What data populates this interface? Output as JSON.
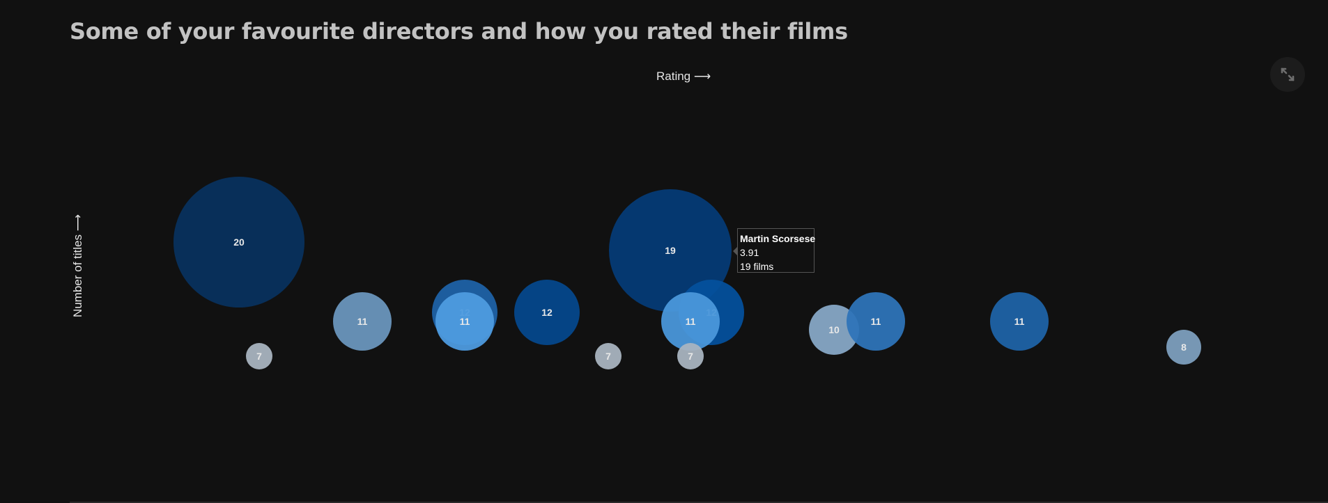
{
  "header": {
    "title": "Some of your favourite directors and how you rated their films"
  },
  "axes": {
    "x_label": "Rating ⟶",
    "y_label": "Number of titles ⟶"
  },
  "toolbar": {
    "expand_icon": "expand-arrows-icon"
  },
  "tooltip": {
    "name": "Martin Scorsese",
    "rating": "3.91",
    "count_text": "19 films"
  },
  "colors": {
    "background": "#111111",
    "text": "#c2c2c2"
  },
  "chart_data": {
    "type": "scatter",
    "encoding": "bubble size and vertical position = number of titles; color = rating",
    "points": [
      {
        "label": "20",
        "value": 20,
        "color": "#08325e"
      },
      {
        "label": "7",
        "value": 7,
        "color": "#a9b4c0"
      },
      {
        "label": "11",
        "value": 11,
        "color": "#6a96bd"
      },
      {
        "label": "12",
        "value": 12,
        "color": "#1f62a6"
      },
      {
        "label": "11",
        "value": 11,
        "color": "#4e9bdf"
      },
      {
        "label": "12",
        "value": 12,
        "color": "#05488c"
      },
      {
        "label": "7",
        "value": 7,
        "color": "#a9b4c0"
      },
      {
        "label": "19",
        "value": 19,
        "color": "#053b76",
        "name": "Martin Scorsese",
        "rating": 3.91
      },
      {
        "label": "12",
        "value": 12,
        "color": "#04509c"
      },
      {
        "label": "11",
        "value": 11,
        "color": "#4a97da"
      },
      {
        "label": "7",
        "value": 7,
        "color": "#a9b4c0"
      },
      {
        "label": "10",
        "value": 10,
        "color": "#87a8c6"
      },
      {
        "label": "11",
        "value": 11,
        "color": "#2e74b8"
      },
      {
        "label": "11",
        "value": 11,
        "color": "#1f63a7"
      },
      {
        "label": "8",
        "value": 8,
        "color": "#7d9fbe"
      }
    ]
  }
}
